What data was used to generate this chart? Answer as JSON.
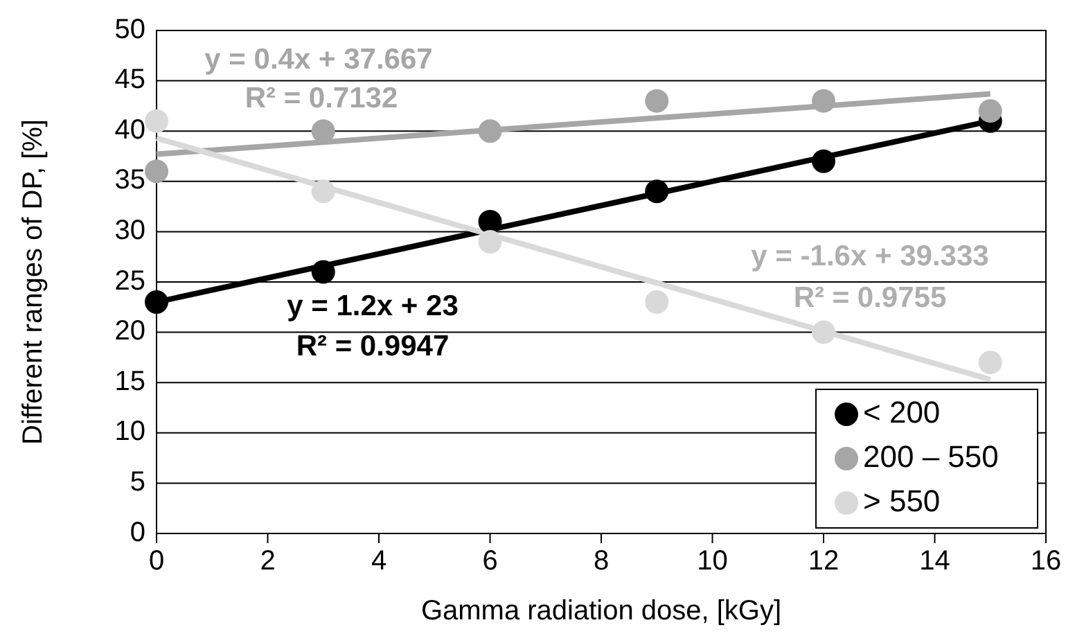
{
  "chart_data": {
    "type": "scatter",
    "xlabel": "Gamma radiation dose, [kGy]",
    "ylabel": "Different ranges of DP, [%]",
    "x": [
      0,
      3,
      6,
      9,
      12,
      15
    ],
    "series": [
      {
        "name": "< 200",
        "color": "#000000",
        "values": [
          23,
          26,
          31,
          34,
          37,
          41
        ]
      },
      {
        "name": "200 – 550",
        "color": "#a6a6a6",
        "values": [
          36,
          40,
          40,
          43,
          43,
          42
        ]
      },
      {
        "name": "> 550",
        "color": "#d9d9d9",
        "values": [
          41,
          34,
          29,
          23,
          20,
          17
        ]
      },
      {
        "type": "line",
        "color": "#000000",
        "values": [
          23,
          26.6,
          30.2,
          33.8,
          37.4,
          41
        ],
        "marker": "none"
      },
      {
        "type": "line",
        "color": "#a6a6a6",
        "values": [
          37.7,
          38.9,
          40.1,
          41.3,
          42.5,
          43.7
        ],
        "marker": "none"
      },
      {
        "type": "line",
        "color": "#d9d9d9",
        "values": [
          39.3,
          34.5,
          29.7,
          24.9,
          20.1,
          15.3
        ],
        "marker": "none"
      }
    ],
    "annotations": [
      "y = 0.4x + 37.667",
      "R² = 0.7132",
      "y = 1.2x + 23",
      "R² = 0.9947",
      "y = -1.6x + 39.333",
      "R² = 0.9755"
    ],
    "xlim": [
      0,
      16
    ],
    "xticks": [
      0,
      2,
      4,
      6,
      8,
      10,
      12,
      14,
      16
    ],
    "ylim": [
      0,
      50
    ],
    "yticks": [
      0,
      5,
      10,
      15,
      20,
      25,
      30,
      35,
      40,
      45,
      50
    ],
    "grid": "y",
    "legend": "bottom right",
    "marker": "circle"
  }
}
